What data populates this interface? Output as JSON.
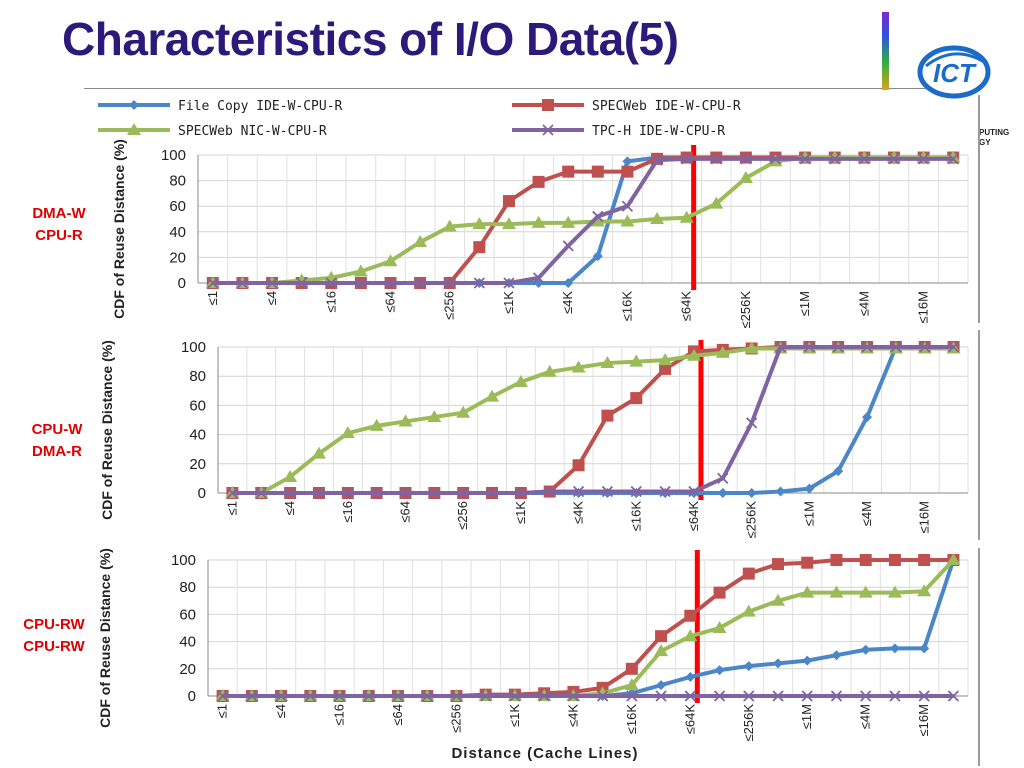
{
  "slide": {
    "title": "Characteristics of I/O Data(5)",
    "logo_text": "ICT",
    "org_text_lines": [
      "PUTING",
      "GY"
    ]
  },
  "colors": {
    "title": "#2b1a7a",
    "file_copy": "#4a86c8",
    "specweb_ide": "#c0504d",
    "specweb_nic": "#9bbb59",
    "tpch": "#8064a2",
    "cutoff_line": "#ff0000",
    "side_label": "#e00000"
  },
  "legend": [
    {
      "label": "File Copy IDE-W-CPU-R",
      "marker": "diamond"
    },
    {
      "label": "SPECWeb IDE-W-CPU-R",
      "marker": "square"
    },
    {
      "label": "SPECWeb NIC-W-CPU-R",
      "marker": "triangle"
    },
    {
      "label": "TPC-H IDE-W-CPU-R",
      "marker": "x"
    }
  ],
  "chart_data": [
    {
      "type": "line",
      "side_label": [
        "DMA-W",
        "CPU-R"
      ],
      "ylabel": "CDF of Reuse Distance (%)",
      "xlabel": "",
      "ylim": [
        0,
        100
      ],
      "yticks": [
        0,
        20,
        40,
        60,
        80,
        100
      ],
      "x": [
        "≤1",
        "≤2",
        "≤4",
        "≤8",
        "≤16",
        "≤32",
        "≤64",
        "≤128",
        "≤256",
        "≤512",
        "≤1K",
        "≤2K",
        "≤4K",
        "≤8K",
        "≤16K",
        "≤32K",
        "≤64K",
        "≤128K",
        "≤256K",
        "≤512K",
        "≤1M",
        "≤2M",
        "≤4M",
        "≤8M",
        "≤16M",
        "≤32M"
      ],
      "x_tick_labels": [
        "≤1",
        "≤4",
        "≤16",
        "≤64",
        "≤256",
        "≤1K",
        "≤4K",
        "≤16K",
        "≤64K",
        "≤256K",
        "≤1M",
        "≤4M",
        "≤16M"
      ],
      "cutoff_category": "≤64K",
      "series": [
        {
          "name": "File Copy IDE-W-CPU-R",
          "values": [
            0,
            0,
            0,
            0,
            0,
            0,
            0,
            0,
            0,
            0,
            0,
            0,
            0,
            21,
            95,
            98,
            98,
            98,
            98,
            98,
            98,
            98,
            98,
            98,
            98,
            98
          ]
        },
        {
          "name": "SPECWeb IDE-W-CPU-R",
          "values": [
            0,
            0,
            0,
            0,
            0,
            0,
            0,
            0,
            0,
            28,
            64,
            79,
            87,
            87,
            87,
            97,
            98,
            98,
            98,
            98,
            98,
            98,
            98,
            98,
            98,
            98
          ]
        },
        {
          "name": "SPECWeb NIC-W-CPU-R",
          "values": [
            0,
            0,
            0,
            2,
            4,
            9,
            17,
            32,
            44,
            46,
            46,
            47,
            47,
            48,
            48,
            50,
            51,
            62,
            82,
            95,
            98,
            98,
            98,
            98,
            98,
            98
          ]
        },
        {
          "name": "TPC-H IDE-W-CPU-R",
          "values": [
            0,
            0,
            0,
            0,
            0,
            0,
            0,
            0,
            0,
            0,
            0,
            4,
            29,
            52,
            60,
            96,
            97,
            97,
            97,
            97,
            97,
            97,
            97,
            97,
            97,
            97
          ]
        }
      ]
    },
    {
      "type": "line",
      "side_label": [
        "CPU-W",
        "DMA-R"
      ],
      "ylabel": "CDF of Reuse Distance (%)",
      "xlabel": "",
      "ylim": [
        0,
        100
      ],
      "yticks": [
        0,
        20,
        40,
        60,
        80,
        100
      ],
      "x": [
        "≤1",
        "≤2",
        "≤4",
        "≤8",
        "≤16",
        "≤32",
        "≤64",
        "≤128",
        "≤256",
        "≤512",
        "≤1K",
        "≤2K",
        "≤4K",
        "≤8K",
        "≤16K",
        "≤32K",
        "≤64K",
        "≤128K",
        "≤256K",
        "≤512K",
        "≤1M",
        "≤2M",
        "≤4M",
        "≤8M",
        "≤16M",
        "≤32M"
      ],
      "x_tick_labels": [
        "≤1",
        "≤4",
        "≤16",
        "≤64",
        "≤256",
        "≤1K",
        "≤4K",
        "≤16K",
        "≤64K",
        "≤256K",
        "≤1M",
        "≤4M",
        "≤16M"
      ],
      "cutoff_category": "≤64K",
      "series": [
        {
          "name": "File Copy IDE-W-CPU-R",
          "values": [
            0,
            0,
            0,
            0,
            0,
            0,
            0,
            0,
            0,
            0,
            0,
            0,
            0,
            0,
            0,
            0,
            0,
            0,
            0,
            1,
            3,
            15,
            52,
            100,
            100,
            100
          ]
        },
        {
          "name": "SPECWeb IDE-W-CPU-R",
          "values": [
            0,
            0,
            0,
            0,
            0,
            0,
            0,
            0,
            0,
            0,
            0,
            1,
            19,
            53,
            65,
            85,
            97,
            98,
            99,
            100,
            100,
            100,
            100,
            100,
            100,
            100
          ]
        },
        {
          "name": "SPECWeb NIC-W-CPU-R",
          "values": [
            0,
            0,
            11,
            27,
            41,
            46,
            49,
            52,
            55,
            66,
            76,
            83,
            86,
            89,
            90,
            91,
            94,
            96,
            99,
            99,
            99,
            99,
            99,
            99,
            99,
            99
          ]
        },
        {
          "name": "TPC-H IDE-W-CPU-R",
          "values": [
            0,
            0,
            0,
            0,
            0,
            0,
            0,
            0,
            0,
            0,
            0,
            1,
            1,
            1,
            1,
            1,
            1,
            10,
            48,
            100,
            100,
            100,
            100,
            100,
            100,
            100
          ]
        }
      ]
    },
    {
      "type": "line",
      "side_label": [
        "CPU-RW",
        "CPU-RW"
      ],
      "ylabel": "CDF of Reuse Distance (%)",
      "xlabel": "Distance (Cache Lines)",
      "ylim": [
        0,
        100
      ],
      "yticks": [
        0,
        20,
        40,
        60,
        80,
        100
      ],
      "x": [
        "≤1",
        "≤2",
        "≤4",
        "≤8",
        "≤16",
        "≤32",
        "≤64",
        "≤128",
        "≤256",
        "≤512",
        "≤1K",
        "≤2K",
        "≤4K",
        "≤8K",
        "≤16K",
        "≤32K",
        "≤64K",
        "≤128K",
        "≤256K",
        "≤512K",
        "≤1M",
        "≤2M",
        "≤4M",
        "≤8M",
        "≤16M",
        "≤32M"
      ],
      "x_tick_labels": [
        "≤1",
        "≤4",
        "≤16",
        "≤64",
        "≤256",
        "≤1K",
        "≤4K",
        "≤16K",
        "≤64K",
        "≤256K",
        "≤1M",
        "≤4M",
        "≤16M"
      ],
      "cutoff_category": "≤64K",
      "series": [
        {
          "name": "File Copy IDE-W-CPU-R",
          "values": [
            0,
            0,
            0,
            0,
            0,
            0,
            0,
            0,
            0,
            0,
            0,
            0,
            0,
            0,
            2,
            8,
            14,
            19,
            22,
            24,
            26,
            30,
            34,
            35,
            35,
            100
          ]
        },
        {
          "name": "SPECWeb IDE-W-CPU-R",
          "values": [
            0,
            0,
            0,
            0,
            0,
            0,
            0,
            0,
            0,
            1,
            1,
            2,
            3,
            6,
            20,
            44,
            59,
            76,
            90,
            97,
            98,
            100,
            100,
            100,
            100,
            100
          ]
        },
        {
          "name": "SPECWeb NIC-W-CPU-R",
          "values": [
            0,
            0,
            0,
            0,
            0,
            0,
            0,
            0,
            0,
            0,
            0,
            0,
            0,
            2,
            8,
            33,
            44,
            50,
            62,
            70,
            76,
            76,
            76,
            76,
            77,
            100
          ]
        },
        {
          "name": "TPC-H IDE-W-CPU-R",
          "values": [
            0,
            0,
            0,
            0,
            0,
            0,
            0,
            0,
            0,
            0,
            0,
            0,
            0,
            0,
            0,
            0,
            0,
            0,
            0,
            0,
            0,
            0,
            0,
            0,
            0,
            0
          ]
        }
      ]
    }
  ]
}
